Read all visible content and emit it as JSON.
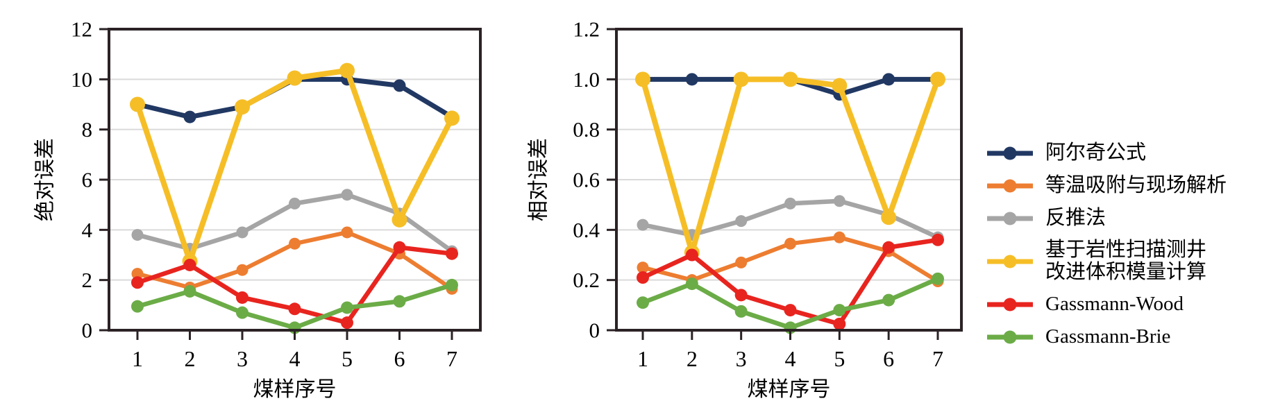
{
  "figure": {
    "background": "#ffffff",
    "spine_color": "#2B2225",
    "grid_color": "#DADADA",
    "text_color": "#000000"
  },
  "legend": {
    "items": [
      {
        "label": "阿尔奇公式",
        "color": "#213863",
        "slug": "archie-formula"
      },
      {
        "label": "等温吸附与现场解析",
        "color": "#ED7D31",
        "slug": "isotherm-adsorption-field-analysis"
      },
      {
        "label": "反推法",
        "color": "#A5A5A5",
        "slug": "back-calculation"
      },
      {
        "label": "基于岩性扫描测井\n改进体积模量计算",
        "color": "#F6BE26",
        "slug": "litho-scanner-bulk-modulus"
      },
      {
        "label": "Gassmann-Wood",
        "color": "#E8241F",
        "slug": "gassmann-wood"
      },
      {
        "label": "Gassmann-Brie",
        "color": "#6BAC47",
        "slug": "gassmann-brie"
      }
    ]
  },
  "chart_data": [
    {
      "type": "line",
      "title": "",
      "xlabel": "煤样序号",
      "ylabel": "绝对误差",
      "x": [
        1,
        2,
        3,
        4,
        5,
        6,
        7
      ],
      "xticks": [
        "1",
        "2",
        "3",
        "4",
        "5",
        "6",
        "7"
      ],
      "yticks": [
        "0",
        "2",
        "4",
        "6",
        "8",
        "10",
        "12"
      ],
      "ylim": [
        0,
        12
      ],
      "grid": "horizontal",
      "legend_position": "outside-right-shared",
      "series": [
        {
          "name": "阿尔奇公式",
          "slug": "archie-formula",
          "color": "#213863",
          "values": [
            9.0,
            8.5,
            8.9,
            10.0,
            10.0,
            9.75,
            8.5
          ]
        },
        {
          "name": "等温吸附与现场解析",
          "slug": "isotherm-adsorption-field-analysis",
          "color": "#ED7D31",
          "values": [
            2.25,
            1.7,
            2.4,
            3.45,
            3.9,
            3.05,
            1.65
          ]
        },
        {
          "name": "反推法",
          "slug": "back-calculation",
          "color": "#A5A5A5",
          "values": [
            3.8,
            3.25,
            3.9,
            5.05,
            5.4,
            4.65,
            3.15
          ]
        },
        {
          "name": "基于岩性扫描测井改进体积模量计算",
          "slug": "litho-scanner-bulk-modulus",
          "color": "#F6BE26",
          "values": [
            9.0,
            2.75,
            8.9,
            10.05,
            10.35,
            4.4,
            8.45
          ]
        },
        {
          "name": "Gassmann-Wood",
          "slug": "gassmann-wood",
          "color": "#E8241F",
          "values": [
            1.9,
            2.6,
            1.3,
            0.85,
            0.3,
            3.3,
            3.05
          ]
        },
        {
          "name": "Gassmann-Brie",
          "slug": "gassmann-brie",
          "color": "#6BAC47",
          "values": [
            0.95,
            1.55,
            0.7,
            0.1,
            0.9,
            1.15,
            1.8
          ]
        }
      ]
    },
    {
      "type": "line",
      "title": "",
      "xlabel": "煤样序号",
      "ylabel": "相对误差",
      "x": [
        1,
        2,
        3,
        4,
        5,
        6,
        7
      ],
      "xticks": [
        "1",
        "2",
        "3",
        "4",
        "5",
        "6",
        "7"
      ],
      "yticks": [
        "0",
        "0.2",
        "0.4",
        "0.6",
        "0.8",
        "1.0",
        "1.2"
      ],
      "ylim": [
        0,
        1.2
      ],
      "grid": "horizontal",
      "legend_position": "outside-right-shared",
      "series": [
        {
          "name": "阿尔奇公式",
          "slug": "archie-formula",
          "color": "#213863",
          "values": [
            1.0,
            1.0,
            1.0,
            1.0,
            0.94,
            1.0,
            1.0
          ]
        },
        {
          "name": "等温吸附与现场解析",
          "slug": "isotherm-adsorption-field-analysis",
          "color": "#ED7D31",
          "values": [
            0.25,
            0.2,
            0.27,
            0.345,
            0.37,
            0.315,
            0.195
          ]
        },
        {
          "name": "反推法",
          "slug": "back-calculation",
          "color": "#A5A5A5",
          "values": [
            0.42,
            0.38,
            0.435,
            0.505,
            0.515,
            0.46,
            0.37
          ]
        },
        {
          "name": "基于岩性扫描测井改进体积模量计算",
          "slug": "litho-scanner-bulk-modulus",
          "color": "#F6BE26",
          "values": [
            1.0,
            0.31,
            1.0,
            1.0,
            0.975,
            0.45,
            1.0
          ]
        },
        {
          "name": "Gassmann-Wood",
          "slug": "gassmann-wood",
          "color": "#E8241F",
          "values": [
            0.21,
            0.3,
            0.14,
            0.08,
            0.025,
            0.33,
            0.36
          ]
        },
        {
          "name": "Gassmann-Brie",
          "slug": "gassmann-brie",
          "color": "#6BAC47",
          "values": [
            0.11,
            0.185,
            0.075,
            0.01,
            0.08,
            0.12,
            0.205
          ]
        }
      ]
    }
  ]
}
